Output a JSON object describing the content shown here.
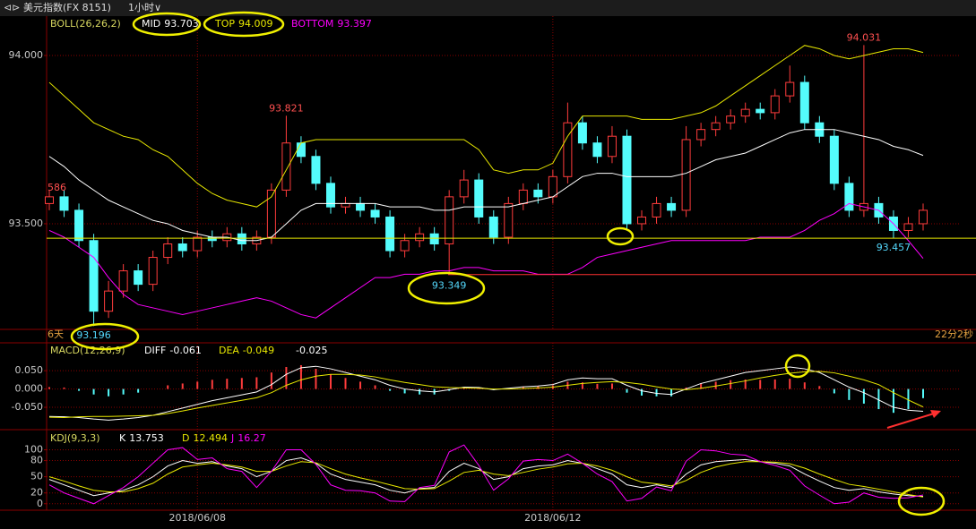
{
  "header": {
    "title": "美元指数(FX 8151)",
    "period": "1小时"
  },
  "chart_data": [
    {
      "type": "candlestick",
      "title": "BOLL(26,26,2)",
      "edge_label": "586",
      "left_note": "6天",
      "right_note": "22分2秒",
      "categories": [
        null,
        null,
        null,
        null,
        null,
        null,
        null,
        null,
        null,
        null,
        "2018/06/08",
        null,
        null,
        null,
        null,
        null,
        null,
        null,
        null,
        null,
        null,
        null,
        null,
        null,
        null,
        null,
        null,
        null,
        null,
        null,
        null,
        null,
        null,
        null,
        "2018/06/12",
        null,
        null,
        null,
        null,
        null,
        null,
        null,
        null,
        null,
        null,
        null,
        null,
        null,
        null,
        null,
        null,
        null,
        null,
        null,
        null,
        null,
        null,
        null,
        null,
        null
      ],
      "open": [
        93.56,
        93.58,
        93.54,
        93.45,
        93.24,
        93.3,
        93.36,
        93.32,
        93.4,
        93.44,
        93.42,
        93.46,
        93.45,
        93.47,
        93.44,
        93.46,
        93.6,
        93.74,
        93.7,
        93.62,
        93.55,
        93.56,
        93.54,
        93.52,
        93.42,
        93.45,
        93.47,
        93.44,
        93.58,
        93.63,
        93.52,
        93.46,
        93.56,
        93.6,
        93.58,
        93.64,
        93.8,
        93.74,
        93.7,
        93.76,
        93.5,
        93.52,
        93.56,
        93.54,
        93.75,
        93.78,
        93.8,
        93.82,
        93.84,
        93.83,
        93.88,
        93.92,
        93.8,
        93.76,
        93.62,
        93.54,
        93.56,
        93.52,
        93.48,
        93.5
      ],
      "high": [
        93.6,
        93.6,
        93.56,
        93.47,
        93.33,
        93.38,
        93.38,
        93.42,
        93.46,
        93.46,
        93.48,
        93.48,
        93.49,
        93.49,
        93.48,
        93.62,
        93.821,
        93.76,
        93.72,
        93.64,
        93.58,
        93.58,
        93.56,
        93.54,
        93.47,
        93.49,
        93.49,
        93.6,
        93.66,
        93.65,
        93.54,
        93.58,
        93.62,
        93.62,
        93.66,
        93.86,
        93.82,
        93.76,
        93.79,
        93.78,
        93.54,
        93.58,
        93.58,
        93.79,
        93.8,
        93.82,
        93.84,
        93.86,
        93.86,
        93.9,
        93.97,
        93.94,
        93.82,
        93.78,
        93.64,
        94.031,
        93.58,
        93.54,
        93.52,
        93.56
      ],
      "low": [
        93.54,
        93.52,
        93.43,
        93.196,
        93.22,
        93.28,
        93.3,
        93.3,
        93.38,
        93.4,
        93.4,
        93.43,
        93.43,
        93.42,
        93.42,
        93.44,
        93.58,
        93.68,
        93.6,
        93.53,
        93.53,
        93.52,
        93.5,
        93.4,
        93.4,
        93.43,
        93.42,
        93.349,
        93.56,
        93.5,
        93.44,
        93.44,
        93.54,
        93.56,
        93.56,
        93.62,
        93.72,
        93.68,
        93.68,
        93.48,
        93.48,
        93.5,
        93.52,
        93.52,
        93.73,
        93.76,
        93.78,
        93.8,
        93.81,
        93.81,
        93.86,
        93.78,
        93.74,
        93.6,
        93.52,
        93.52,
        93.5,
        93.457,
        93.46,
        93.48
      ],
      "close": [
        93.58,
        93.54,
        93.45,
        93.24,
        93.3,
        93.36,
        93.32,
        93.4,
        93.44,
        93.42,
        93.46,
        93.45,
        93.47,
        93.44,
        93.46,
        93.6,
        93.74,
        93.7,
        93.62,
        93.55,
        93.56,
        93.54,
        93.52,
        93.42,
        93.45,
        93.47,
        93.44,
        93.58,
        93.63,
        93.52,
        93.46,
        93.56,
        93.6,
        93.58,
        93.64,
        93.8,
        93.74,
        93.7,
        93.76,
        93.5,
        93.52,
        93.56,
        93.54,
        93.75,
        93.78,
        93.8,
        93.82,
        93.84,
        93.83,
        93.88,
        93.92,
        93.8,
        93.76,
        93.62,
        93.54,
        93.56,
        93.52,
        93.48,
        93.5,
        93.54
      ],
      "up_color": "#ff3c3c",
      "down_color": "#54fcfc",
      "series": [
        {
          "name": "MID",
          "color": "#ffffff",
          "values": [
            93.7,
            93.67,
            93.63,
            93.6,
            93.57,
            93.55,
            93.53,
            93.51,
            93.5,
            93.48,
            93.47,
            93.46,
            93.46,
            93.45,
            93.45,
            93.46,
            93.5,
            93.54,
            93.56,
            93.56,
            93.56,
            93.56,
            93.56,
            93.55,
            93.55,
            93.55,
            93.54,
            93.54,
            93.55,
            93.55,
            93.55,
            93.55,
            93.56,
            93.57,
            93.58,
            93.61,
            93.64,
            93.65,
            93.65,
            93.64,
            93.64,
            93.64,
            93.64,
            93.65,
            93.67,
            93.69,
            93.7,
            93.71,
            93.73,
            93.75,
            93.77,
            93.78,
            93.78,
            93.78,
            93.77,
            93.76,
            93.75,
            93.73,
            93.72,
            93.703
          ]
        },
        {
          "name": "TOP",
          "color": "#e8e800",
          "values": [
            93.92,
            93.88,
            93.84,
            93.8,
            93.78,
            93.76,
            93.75,
            93.72,
            93.7,
            93.66,
            93.62,
            93.59,
            93.57,
            93.56,
            93.55,
            93.58,
            93.66,
            93.74,
            93.75,
            93.75,
            93.75,
            93.75,
            93.75,
            93.75,
            93.75,
            93.75,
            93.75,
            93.75,
            93.75,
            93.72,
            93.66,
            93.65,
            93.66,
            93.66,
            93.68,
            93.76,
            93.82,
            93.82,
            93.82,
            93.82,
            93.81,
            93.81,
            93.81,
            93.82,
            93.83,
            93.85,
            93.88,
            93.91,
            93.94,
            93.97,
            94.0,
            94.03,
            94.02,
            94.0,
            93.99,
            94.0,
            94.01,
            94.02,
            94.02,
            94.009
          ]
        },
        {
          "name": "BOTTOM",
          "color": "#ff00ff",
          "values": [
            93.48,
            93.46,
            93.43,
            93.4,
            93.34,
            93.29,
            93.26,
            93.25,
            93.24,
            93.23,
            93.24,
            93.25,
            93.26,
            93.27,
            93.28,
            93.27,
            93.25,
            93.23,
            93.22,
            93.25,
            93.28,
            93.31,
            93.34,
            93.34,
            93.35,
            93.35,
            93.36,
            93.36,
            93.37,
            93.37,
            93.36,
            93.36,
            93.36,
            93.35,
            93.35,
            93.35,
            93.37,
            93.4,
            93.41,
            93.42,
            93.43,
            93.44,
            93.45,
            93.45,
            93.45,
            93.45,
            93.45,
            93.45,
            93.46,
            93.46,
            93.46,
            93.48,
            93.51,
            93.53,
            93.56,
            93.55,
            93.54,
            93.5,
            93.45,
            93.397
          ]
        }
      ],
      "ylim": [
        93.186,
        94.117
      ],
      "yticks": [
        {
          "value": 94.0,
          "label": "94.000"
        },
        {
          "value": 93.5,
          "label": "93.500"
        }
      ],
      "grid": true
    },
    {
      "type": "macd",
      "title": "MACD(12,26,9)",
      "histogram": [
        0.005,
        0.004,
        -0.005,
        -0.015,
        -0.02,
        -0.015,
        -0.01,
        0.0,
        0.01,
        0.015,
        0.02,
        0.025,
        0.028,
        0.03,
        0.032,
        0.045,
        0.06,
        0.065,
        0.055,
        0.04,
        0.03,
        0.02,
        0.01,
        -0.005,
        -0.012,
        -0.015,
        -0.015,
        -0.005,
        0.005,
        0.004,
        -0.003,
        0.002,
        0.006,
        0.008,
        0.01,
        0.02,
        0.018,
        0.014,
        0.015,
        -0.01,
        -0.018,
        -0.02,
        -0.02,
        0.004,
        0.015,
        0.02,
        0.024,
        0.026,
        0.025,
        0.026,
        0.028,
        0.018,
        0.008,
        -0.012,
        -0.03,
        -0.04,
        -0.055,
        -0.065,
        -0.055,
        -0.025
      ],
      "series": [
        {
          "name": "DIFF",
          "color": "#ffffff",
          "values": [
            -0.075,
            -0.076,
            -0.078,
            -0.082,
            -0.085,
            -0.082,
            -0.078,
            -0.072,
            -0.062,
            -0.052,
            -0.042,
            -0.032,
            -0.024,
            -0.016,
            -0.008,
            0.012,
            0.04,
            0.058,
            0.062,
            0.055,
            0.045,
            0.035,
            0.025,
            0.01,
            0.0,
            -0.005,
            -0.008,
            -0.002,
            0.005,
            0.004,
            -0.002,
            0.002,
            0.006,
            0.008,
            0.012,
            0.025,
            0.03,
            0.028,
            0.028,
            0.01,
            -0.005,
            -0.012,
            -0.015,
            0.0,
            0.015,
            0.025,
            0.035,
            0.045,
            0.05,
            0.055,
            0.06,
            0.055,
            0.045,
            0.025,
            0.005,
            -0.01,
            -0.03,
            -0.05,
            -0.058,
            -0.061
          ]
        },
        {
          "name": "DEA",
          "color": "#e8e800",
          "values": [
            -0.077,
            -0.078,
            -0.076,
            -0.075,
            -0.075,
            -0.074,
            -0.073,
            -0.072,
            -0.067,
            -0.06,
            -0.052,
            -0.045,
            -0.038,
            -0.031,
            -0.024,
            -0.01,
            0.01,
            0.025,
            0.035,
            0.04,
            0.04,
            0.038,
            0.033,
            0.025,
            0.018,
            0.012,
            0.006,
            0.004,
            0.003,
            0.002,
            0.0,
            0.0,
            0.001,
            0.003,
            0.005,
            0.01,
            0.015,
            0.018,
            0.02,
            0.018,
            0.013,
            0.006,
            0.0,
            -0.002,
            0.002,
            0.008,
            0.015,
            0.022,
            0.03,
            0.037,
            0.043,
            0.047,
            0.048,
            0.044,
            0.035,
            0.025,
            0.012,
            -0.01,
            -0.03,
            -0.049
          ]
        }
      ],
      "ylim": [
        -0.111,
        0.126
      ],
      "yticks": [
        {
          "value": 0.05,
          "label": "0.050"
        },
        {
          "value": 0.0,
          "label": "0.000"
        },
        {
          "value": -0.05,
          "label": "-0.050"
        }
      ],
      "grid": true
    },
    {
      "type": "kdj",
      "title": "KDJ(9,3,3)",
      "series": [
        {
          "name": "K",
          "color": "#ffffff",
          "values": [
            45,
            35,
            25,
            15,
            20,
            25,
            35,
            50,
            70,
            80,
            75,
            78,
            70,
            65,
            50,
            60,
            80,
            85,
            75,
            55,
            45,
            40,
            35,
            25,
            20,
            28,
            30,
            60,
            75,
            65,
            45,
            50,
            65,
            70,
            72,
            80,
            75,
            65,
            55,
            35,
            30,
            35,
            30,
            55,
            72,
            78,
            80,
            82,
            78,
            75,
            70,
            55,
            42,
            30,
            25,
            28,
            22,
            18,
            15,
            13.753
          ]
        },
        {
          "name": "D",
          "color": "#e8e800",
          "values": [
            50,
            42,
            33,
            25,
            22,
            22,
            28,
            38,
            55,
            68,
            72,
            75,
            72,
            68,
            60,
            60,
            70,
            78,
            76,
            65,
            55,
            48,
            42,
            35,
            28,
            27,
            28,
            42,
            58,
            62,
            55,
            52,
            58,
            64,
            68,
            74,
            75,
            70,
            62,
            50,
            40,
            37,
            33,
            43,
            58,
            68,
            74,
            78,
            78,
            77,
            74,
            66,
            55,
            45,
            36,
            32,
            27,
            22,
            17,
            12.494
          ]
        },
        {
          "name": "J",
          "color": "#ff00ff",
          "values": [
            35,
            20,
            10,
            0,
            15,
            30,
            50,
            75,
            100,
            104,
            82,
            85,
            65,
            60,
            30,
            60,
            100,
            100,
            73,
            35,
            25,
            24,
            20,
            5,
            4,
            30,
            34,
            96,
            109,
            71,
            25,
            46,
            79,
            82,
            80,
            92,
            75,
            55,
            41,
            5,
            10,
            31,
            24,
            79,
            100,
            98,
            92,
            90,
            78,
            71,
            62,
            33,
            16,
            0,
            3,
            20,
            12,
            10,
            11,
            16.27
          ]
        }
      ],
      "ylim": [
        -12,
        134
      ],
      "yticks": [
        100,
        80,
        50,
        20,
        0
      ],
      "grid": true
    }
  ]
}
